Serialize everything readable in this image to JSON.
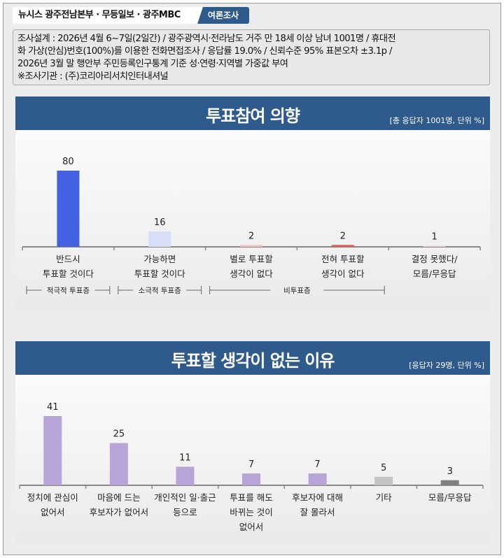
{
  "header": {
    "brand": "뉴시스  광주전남본부 · 무등일보 · 광주MBC",
    "tag": "여론조사"
  },
  "note": {
    "lines": [
      "조사설계 : 2026년 4월 6~7일(2일간) / 광주광역시·전라남도 거주 만 18세 이상 남녀 1001명 / 휴대전",
      "화 가상(안심)번호(100%)를 이용한 전화면접조사 / 응답률 19.0% / 신뢰수준 95% 표본오차 ±3.1p /",
      "2026년 3월 말 행안부 주민등록인구통계 기준 성·연령·지역별 가중값 부여",
      "※조사기관 : (주)코리아리서치인터내셔널"
    ]
  },
  "chart_data": [
    {
      "type": "bar",
      "title": "투표참여 의향",
      "unit_note": "[총 응답자 1001명, 단위 %]",
      "categories": [
        [
          "반드시",
          "투표할 것이다"
        ],
        [
          "가능하면",
          "투표할 것이다"
        ],
        [
          "별로 투표할",
          "생각이 없다"
        ],
        [
          "전혀 투표할",
          "생각이 없다"
        ],
        [
          "결정 못했다/",
          "모름/무응답"
        ]
      ],
      "values": [
        80,
        16,
        2,
        2,
        1
      ],
      "colors": [
        "#4262e2",
        "#d9def8",
        "#f3c6c6",
        "#e45a5a",
        "#f0d0d0"
      ],
      "groups": [
        {
          "label": "적극적 투표층",
          "span": [
            0,
            0
          ]
        },
        {
          "label": "소극적 투표층",
          "span": [
            1,
            1
          ]
        },
        {
          "label": "비투표층",
          "span": [
            2,
            3
          ]
        }
      ],
      "ylim": [
        0,
        80
      ]
    },
    {
      "type": "bar",
      "title": "투표할 생각이 없는 이유",
      "unit_note": "[응답자 29명, 단위 %]",
      "categories": [
        [
          "정치에 관심이",
          "없어서"
        ],
        [
          "마음에 드는",
          "후보자가 없어서"
        ],
        [
          "개인적인 일·출근",
          "등으로"
        ],
        [
          "투표를 해도",
          "바뀌는 것이",
          "없어서"
        ],
        [
          "후보자에 대해",
          "잘 몰라서"
        ],
        [
          "기타"
        ],
        [
          "모름/무응답"
        ]
      ],
      "values": [
        41,
        25,
        11,
        7,
        7,
        5,
        3
      ],
      "colors": [
        "#b8a5d8",
        "#b8a5d8",
        "#b8a5d8",
        "#b8a5d8",
        "#b8a5d8",
        "#c4c4c4",
        "#7f7f7f"
      ],
      "ylim": [
        0,
        41
      ]
    }
  ]
}
